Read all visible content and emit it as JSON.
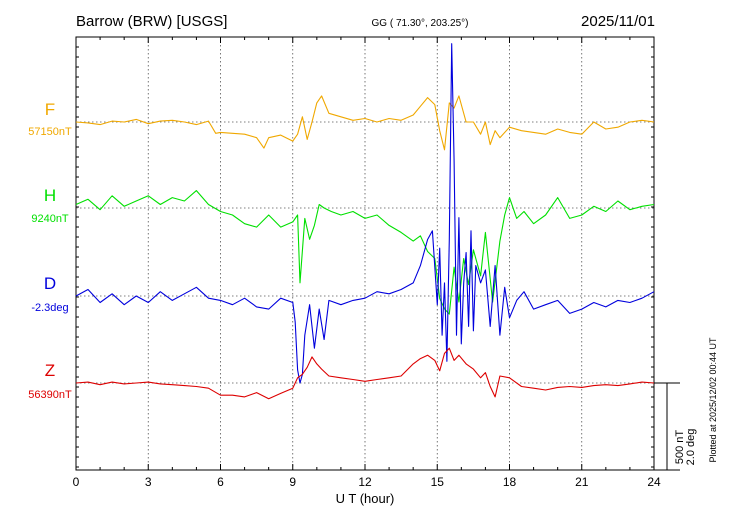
{
  "header": {
    "station": "Barrow (BRW)  [USGS]",
    "coords": "GG ( 71.30°, 203.25°)",
    "date": "2025/11/01"
  },
  "side_note": "Plotted at 2025/12/02 00:44 UT",
  "scale_bar": {
    "label_nt": "500 nT",
    "label_deg": "2.0 deg"
  },
  "colors": {
    "F": "#f0a800",
    "H": "#00e000",
    "D": "#0000dd",
    "Z": "#dd0000",
    "axis": "#000000",
    "grid": "#555555"
  },
  "chart_data": {
    "type": "line",
    "xlabel": "U T (hour)",
    "xlim": [
      0,
      24
    ],
    "x_ticks": [
      0,
      3,
      6,
      9,
      12,
      15,
      18,
      21,
      24
    ],
    "grid": true,
    "series": [
      {
        "name": "F",
        "base_label": "57150nT",
        "color": "#f0a800",
        "unit": "nT",
        "baseline": 57150,
        "x": [
          0,
          0.5,
          1,
          1.5,
          2,
          2.5,
          3,
          3.5,
          4,
          4.5,
          5,
          5.5,
          5.8,
          6,
          6.5,
          7,
          7.5,
          7.8,
          8,
          8.5,
          9,
          9.2,
          9.4,
          9.6,
          9.8,
          10,
          10.2,
          10.5,
          11,
          11.5,
          12,
          12.5,
          13,
          13.5,
          14,
          14.3,
          14.6,
          14.9,
          15.1,
          15.3,
          15.5,
          15.7,
          15.9,
          16.2,
          16.5,
          16.8,
          17,
          17.2,
          17.4,
          17.6,
          18,
          18.5,
          19,
          19.5,
          20,
          20.5,
          21,
          21.5,
          22,
          22.5,
          23,
          23.5,
          24
        ],
        "values": [
          57150,
          57145,
          57135,
          57155,
          57150,
          57165,
          57140,
          57155,
          57160,
          57150,
          57135,
          57155,
          57085,
          57090,
          57085,
          57080,
          57060,
          57000,
          57060,
          57075,
          57040,
          57080,
          57180,
          57050,
          57150,
          57260,
          57300,
          57200,
          57180,
          57160,
          57170,
          57150,
          57170,
          57160,
          57190,
          57240,
          57290,
          57250,
          57100,
          56990,
          57260,
          57230,
          57300,
          57150,
          57150,
          57080,
          57150,
          57020,
          57100,
          57060,
          57120,
          57100,
          57090,
          57080,
          57110,
          57090,
          57080,
          57150,
          57110,
          57120,
          57150,
          57160,
          57150
        ]
      },
      {
        "name": "H",
        "base_label": "9240nT",
        "color": "#00e000",
        "unit": "nT",
        "baseline": 9240,
        "x": [
          0,
          0.5,
          1,
          1.5,
          2,
          2.5,
          3,
          3.5,
          4,
          4.5,
          5,
          5.5,
          6,
          6.5,
          7,
          7.5,
          8,
          8.5,
          9,
          9.2,
          9.3,
          9.5,
          9.7,
          9.9,
          10.1,
          10.3,
          10.6,
          11,
          11.5,
          12,
          12.5,
          13,
          13.5,
          14,
          14.3,
          14.6,
          14.9,
          15.1,
          15.3,
          15.5,
          15.7,
          15.9,
          16.1,
          16.3,
          16.5,
          16.8,
          17,
          17.3,
          17.6,
          17.8,
          18,
          18.3,
          18.6,
          19,
          19.5,
          20,
          20.5,
          21,
          21.5,
          22,
          22.5,
          23,
          23.5,
          24
        ],
        "values": [
          9260,
          9290,
          9230,
          9310,
          9250,
          9280,
          9310,
          9260,
          9300,
          9280,
          9340,
          9260,
          9220,
          9200,
          9150,
          9130,
          9200,
          9130,
          9160,
          9200,
          8810,
          9180,
          9060,
          9140,
          9260,
          9240,
          9220,
          9200,
          9220,
          9180,
          9200,
          9140,
          9100,
          9050,
          9080,
          8990,
          8950,
          8720,
          8660,
          8630,
          8900,
          8700,
          8950,
          8800,
          9000,
          8850,
          9100,
          8700,
          9050,
          9200,
          9300,
          9180,
          9220,
          9150,
          9200,
          9300,
          9180,
          9200,
          9250,
          9220,
          9280,
          9230,
          9250,
          9260
        ]
      },
      {
        "name": "D",
        "base_label": "-2.3deg",
        "color": "#0000dd",
        "unit": "deg",
        "baseline": -2.3,
        "x": [
          0,
          0.5,
          1,
          1.5,
          2,
          2.5,
          3,
          3.5,
          4,
          4.5,
          5,
          5.5,
          6,
          6.5,
          7,
          7.5,
          8,
          8.5,
          9,
          9.1,
          9.2,
          9.3,
          9.4,
          9.5,
          9.7,
          9.9,
          10.1,
          10.3,
          10.5,
          11,
          11.5,
          12,
          12.5,
          13,
          13.5,
          14,
          14.3,
          14.6,
          14.8,
          15,
          15.1,
          15.2,
          15.3,
          15.4,
          15.5,
          15.6,
          15.7,
          15.8,
          15.9,
          16,
          16.1,
          16.2,
          16.3,
          16.4,
          16.5,
          16.6,
          16.8,
          17,
          17.2,
          17.4,
          17.6,
          17.8,
          18,
          18.3,
          18.6,
          19,
          19.5,
          20,
          20.5,
          21,
          21.5,
          22,
          22.5,
          23,
          23.5,
          24
        ],
        "values": [
          -2.3,
          -2.15,
          -2.45,
          -2.25,
          -2.5,
          -2.3,
          -2.45,
          -2.2,
          -2.4,
          -2.25,
          -2.1,
          -2.35,
          -2.4,
          -2.5,
          -2.35,
          -2.55,
          -2.6,
          -2.35,
          -2.45,
          -2.9,
          -4.0,
          -4.3,
          -4.1,
          -3.2,
          -2.5,
          -3.5,
          -2.6,
          -3.3,
          -2.4,
          -2.5,
          -2.4,
          -2.35,
          -2.2,
          -2.25,
          -2.15,
          -2.0,
          -1.6,
          -1.0,
          -0.8,
          -2.5,
          -1.2,
          -3.2,
          -2.0,
          -3.8,
          -1.0,
          3.5,
          0.8,
          -3.2,
          -0.5,
          -3.4,
          -2.0,
          -1.3,
          -3.0,
          -0.8,
          -3.1,
          -1.6,
          -2.0,
          -1.7,
          -3.0,
          -1.6,
          -3.2,
          -2.1,
          -2.8,
          -2.4,
          -2.2,
          -2.6,
          -2.5,
          -2.4,
          -2.7,
          -2.6,
          -2.45,
          -2.55,
          -2.4,
          -2.45,
          -2.35,
          -2.2
        ]
      },
      {
        "name": "Z",
        "base_label": "56390nT",
        "color": "#dd0000",
        "unit": "nT",
        "baseline": 56390,
        "x": [
          0,
          0.5,
          1,
          1.5,
          2,
          2.5,
          3,
          3.5,
          4,
          4.5,
          5,
          5.5,
          6,
          6.5,
          7,
          7.5,
          8,
          8.5,
          9,
          9.2,
          9.4,
          9.6,
          9.8,
          10,
          10.2,
          10.5,
          11,
          11.5,
          12,
          12.5,
          13,
          13.5,
          14,
          14.3,
          14.6,
          14.9,
          15.1,
          15.3,
          15.5,
          15.7,
          15.9,
          16.2,
          16.5,
          16.8,
          17,
          17.2,
          17.4,
          17.6,
          18,
          18.5,
          19,
          19.5,
          20,
          20.5,
          21,
          21.5,
          22,
          22.5,
          23,
          23.5,
          24
        ],
        "values": [
          56390,
          56395,
          56380,
          56395,
          56385,
          56390,
          56395,
          56385,
          56380,
          56375,
          56370,
          56360,
          56320,
          56320,
          56310,
          56335,
          56300,
          56330,
          56360,
          56420,
          56440,
          56480,
          56540,
          56500,
          56470,
          56430,
          56420,
          56410,
          56400,
          56410,
          56420,
          56430,
          56500,
          56530,
          56550,
          56520,
          56460,
          56560,
          56590,
          56520,
          56550,
          56500,
          56470,
          56420,
          56450,
          56370,
          56310,
          56430,
          56420,
          56370,
          56360,
          56350,
          56365,
          56370,
          56365,
          56375,
          56380,
          56375,
          56385,
          56395,
          56390
        ]
      }
    ]
  }
}
